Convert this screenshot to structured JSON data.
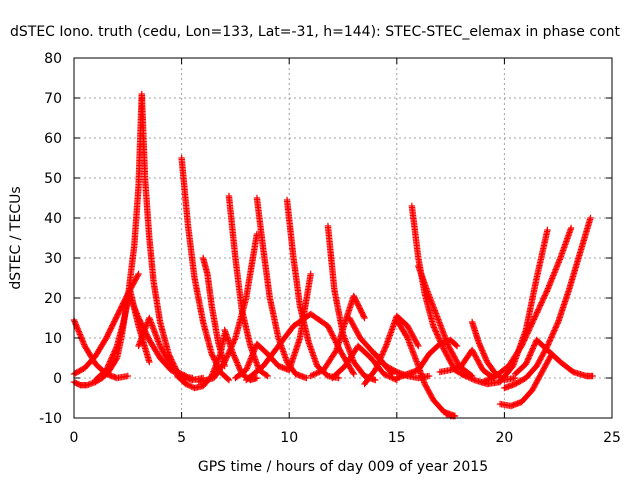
{
  "chart_data": {
    "type": "scatter",
    "title": "dSTEC Iono. truth (cedu, Lon=133, Lat=-31, h=144): STEC-STEC_elemax in phase cont",
    "xlabel": "GPS time / hours of day 009 of year 2015",
    "ylabel": "dSTEC  / TECUs",
    "xlim": [
      0,
      25
    ],
    "ylim": [
      -10,
      80
    ],
    "xticks": [
      0,
      5,
      10,
      15,
      20,
      25
    ],
    "yticks": [
      -10,
      0,
      10,
      20,
      30,
      40,
      50,
      60,
      70,
      80
    ],
    "grid": true,
    "marker": "+",
    "marker_color": "#ff0000",
    "series": [
      {
        "x": [
          0.0,
          0.5,
          1.0,
          1.5,
          2.0,
          2.5
        ],
        "y": [
          14.5,
          8.0,
          3.5,
          1.0,
          0.0,
          0.5
        ]
      },
      {
        "x": [
          0.0,
          0.5,
          1.0,
          1.5,
          2.0,
          2.5,
          3.0
        ],
        "y": [
          1.0,
          2.5,
          5.5,
          10.0,
          15.5,
          21.0,
          26.0
        ]
      },
      {
        "x": [
          0.0,
          0.3,
          0.6,
          1.0,
          1.3
        ],
        "y": [
          -1.0,
          -1.8,
          -1.8,
          -1.0,
          0.0
        ]
      },
      {
        "x": [
          1.3,
          1.6,
          2.0,
          2.2,
          2.5,
          2.8,
          3.0,
          3.15,
          3.3,
          3.5,
          3.7,
          4.0,
          4.4,
          4.8,
          5.2
        ],
        "y": [
          0.0,
          1.5,
          5.0,
          10.0,
          20.0,
          33.0,
          48.0,
          71.0,
          50.0,
          35.0,
          24.0,
          14.0,
          6.0,
          1.5,
          0.5
        ]
      },
      {
        "x": [
          1.0,
          1.5,
          2.0,
          2.3,
          2.6,
          3.0,
          3.5
        ],
        "y": [
          -0.5,
          2.0,
          8.0,
          14.0,
          22.0,
          13.0,
          4.0
        ]
      },
      {
        "x": [
          2.7,
          3.0,
          3.5,
          4.0,
          4.5,
          5.0,
          5.5,
          6.0
        ],
        "y": [
          19.0,
          15.0,
          9.5,
          5.0,
          2.0,
          0.5,
          -0.5,
          0.0
        ]
      },
      {
        "x": [
          3.0,
          3.5,
          4.0,
          4.5,
          5.0,
          5.5
        ],
        "y": [
          8.0,
          15.0,
          8.0,
          3.0,
          0.5,
          0.0
        ]
      },
      {
        "x": [
          5.0,
          5.3,
          5.6,
          6.0,
          6.4,
          6.8,
          7.2
        ],
        "y": [
          55.0,
          38.0,
          25.0,
          14.0,
          6.0,
          1.5,
          -0.5
        ]
      },
      {
        "x": [
          4.8,
          5.2,
          5.6,
          6.0,
          6.4,
          6.8,
          7.0
        ],
        "y": [
          0.5,
          -1.5,
          -2.5,
          -2.0,
          0.5,
          6.0,
          11.0
        ]
      },
      {
        "x": [
          6.0,
          6.2,
          6.4,
          6.7,
          7.0
        ],
        "y": [
          30.0,
          26.0,
          18.0,
          9.0,
          3.0
        ]
      },
      {
        "x": [
          5.8,
          6.5,
          7.0,
          7.5,
          8.0,
          8.5
        ],
        "y": [
          -1.0,
          0.0,
          4.0,
          10.0,
          20.0,
          36.0
        ]
      },
      {
        "x": [
          7.2,
          7.5,
          7.8,
          8.2,
          8.6,
          9.0
        ],
        "y": [
          45.5,
          30.0,
          17.0,
          8.0,
          2.0,
          0.5
        ]
      },
      {
        "x": [
          7.0,
          7.4,
          7.8,
          8.2,
          8.5
        ],
        "y": [
          12.0,
          6.0,
          1.0,
          -0.5,
          0.0
        ]
      },
      {
        "x": [
          8.5,
          8.8,
          9.1,
          9.5,
          9.9,
          10.3,
          10.8
        ],
        "y": [
          45.0,
          32.0,
          20.0,
          10.0,
          4.0,
          1.0,
          0.0
        ]
      },
      {
        "x": [
          7.5,
          8.0,
          8.5,
          9.0,
          9.5,
          10.0,
          10.5,
          11.0
        ],
        "y": [
          0.0,
          2.0,
          8.5,
          6.0,
          3.0,
          2.0,
          10.0,
          26.0
        ]
      },
      {
        "x": [
          9.9,
          10.2,
          10.5,
          10.9,
          11.3,
          11.8,
          12.3
        ],
        "y": [
          44.5,
          30.0,
          18.0,
          9.0,
          3.0,
          0.5,
          0.0
        ]
      },
      {
        "x": [
          8.0,
          8.8,
          9.5,
          10.2,
          11.0,
          11.8,
          12.4,
          13.0
        ],
        "y": [
          -0.5,
          3.0,
          8.0,
          13.0,
          16.0,
          13.0,
          6.5,
          1.0
        ]
      },
      {
        "x": [
          11.8,
          12.1,
          12.5,
          13.0,
          13.5,
          14.0
        ],
        "y": [
          38.0,
          22.0,
          11.0,
          4.0,
          0.5,
          -0.5
        ]
      },
      {
        "x": [
          11.0,
          11.6,
          12.2,
          12.6,
          13.0,
          13.5
        ],
        "y": [
          0.5,
          2.0,
          7.0,
          14.0,
          20.5,
          15.0
        ]
      },
      {
        "x": [
          12.8,
          13.3,
          13.8,
          14.3,
          14.8
        ],
        "y": [
          15.0,
          10.0,
          7.0,
          4.0,
          1.0
        ]
      },
      {
        "x": [
          12.0,
          12.6,
          13.2,
          13.8,
          14.4,
          15.0
        ],
        "y": [
          0.0,
          3.0,
          8.0,
          5.0,
          1.0,
          -0.5
        ]
      },
      {
        "x": [
          13.5,
          14.0,
          14.5,
          15.0,
          15.5,
          16.0
        ],
        "y": [
          -1.5,
          2.0,
          8.0,
          15.5,
          13.0,
          8.0
        ]
      },
      {
        "x": [
          14.0,
          14.5,
          15.0,
          15.5,
          16.0,
          16.5
        ],
        "y": [
          6.0,
          3.0,
          1.5,
          0.5,
          0.0,
          0.5
        ]
      },
      {
        "x": [
          15.0,
          15.5,
          16.0,
          16.5,
          17.0,
          17.5,
          17.8
        ],
        "y": [
          0.0,
          1.0,
          2.0,
          6.0,
          8.5,
          9.5,
          8.0
        ]
      },
      {
        "x": [
          15.0,
          15.5,
          16.0,
          16.3,
          16.7,
          17.2,
          17.7
        ],
        "y": [
          14.5,
          10.0,
          3.0,
          -1.5,
          -5.5,
          -8.5,
          -9.5
        ]
      },
      {
        "x": [
          15.7,
          16.0,
          16.3,
          16.7,
          17.2,
          17.7,
          18.2
        ],
        "y": [
          43.0,
          30.0,
          21.0,
          13.0,
          7.0,
          2.0,
          0.5
        ]
      },
      {
        "x": [
          16.0,
          16.4,
          16.9,
          17.4,
          17.9,
          18.5
        ],
        "y": [
          28.0,
          22.0,
          15.0,
          8.0,
          3.0,
          0.5
        ]
      },
      {
        "x": [
          17.0,
          17.5,
          18.0,
          18.5,
          19.0,
          19.5
        ],
        "y": [
          1.5,
          2.0,
          3.0,
          7.0,
          2.0,
          0.0
        ]
      },
      {
        "x": [
          18.5,
          18.8,
          19.2,
          19.6,
          20.0,
          20.5
        ],
        "y": [
          14.0,
          9.0,
          4.0,
          1.0,
          -0.5,
          0.0
        ]
      },
      {
        "x": [
          18.0,
          18.6,
          19.2,
          19.8,
          20.4,
          21.0,
          21.5,
          22.0
        ],
        "y": [
          1.0,
          -0.5,
          -1.5,
          -1.0,
          3.0,
          12.0,
          25.0,
          37.0
        ]
      },
      {
        "x": [
          19.8,
          20.3,
          20.8,
          21.3,
          21.8,
          22.2
        ],
        "y": [
          -6.5,
          -7.0,
          -6.0,
          -3.0,
          2.0,
          6.0
        ]
      },
      {
        "x": [
          20.0,
          20.5,
          21.0,
          21.5,
          22.0,
          22.5,
          23.0,
          23.5,
          24.0
        ],
        "y": [
          -2.5,
          -1.5,
          0.0,
          3.0,
          8.0,
          14.0,
          22.0,
          31.0,
          40.0
        ]
      },
      {
        "x": [
          19.0,
          19.6,
          20.2,
          20.8,
          21.4,
          22.0,
          22.6,
          23.1
        ],
        "y": [
          -1.0,
          0.5,
          3.0,
          8.0,
          15.0,
          22.0,
          30.0,
          37.5
        ]
      },
      {
        "x": [
          20.5,
          21.0,
          21.5,
          22.0,
          22.6,
          23.2,
          23.8,
          24.1
        ],
        "y": [
          1.0,
          3.5,
          9.5,
          7.0,
          4.0,
          1.5,
          0.5,
          0.5
        ]
      },
      {
        "x": [
          17.3,
          17.5,
          17.7
        ],
        "y": [
          -9.0,
          -9.5,
          -9.5
        ]
      }
    ]
  }
}
